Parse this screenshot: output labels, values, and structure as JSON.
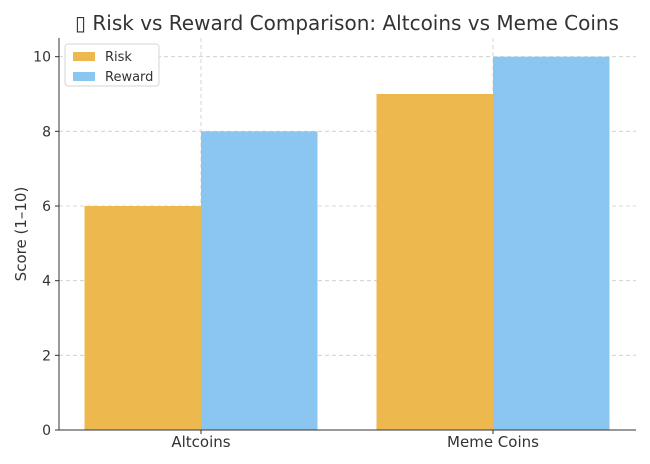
{
  "chart_data": {
    "type": "bar",
    "title": "▯ Risk vs Reward Comparison: Altcoins vs Meme Coins",
    "xlabel": "",
    "ylabel": "Score (1–10)",
    "categories": [
      "Altcoins",
      "Meme Coins"
    ],
    "series": [
      {
        "name": "Risk",
        "values": [
          6,
          9
        ],
        "color": "#EDB94E"
      },
      {
        "name": "Reward",
        "values": [
          8,
          10
        ],
        "color": "#8AC6F0"
      }
    ],
    "ylim": [
      0,
      10.5
    ],
    "yticks": [
      0,
      2,
      4,
      6,
      8,
      10
    ],
    "grid": true,
    "legend_position": "top-left"
  }
}
